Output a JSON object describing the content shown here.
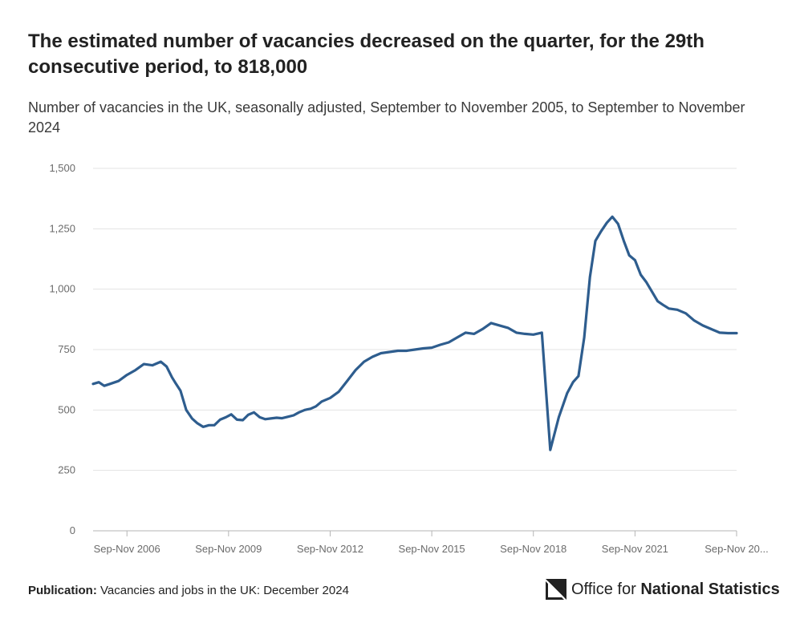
{
  "header": {
    "title": "The estimated number of vacancies decreased on the quarter, for the 29th consecutive period, to 818,000",
    "subtitle": "Number of vacancies in the UK, seasonally adjusted, September to November 2005, to September to November 2024"
  },
  "footer": {
    "publication_label": "Publication:",
    "publication_text": "Vacancies and jobs in the UK: December 2024",
    "logo_prefix": "Office for",
    "logo_bold": "National Statistics"
  },
  "colors": {
    "line": "#2e5d8e",
    "grid": "#e3e3e3",
    "axis": "#b5b5b5"
  },
  "chart_data": {
    "type": "line",
    "title": "The estimated number of vacancies decreased on the quarter, for the 29th consecutive period, to 818,000",
    "subtitle": "Number of vacancies in the UK, seasonally adjusted, September to November 2005, to September to November 2024",
    "xlabel": "",
    "ylabel": "",
    "ylim": [
      0,
      1500
    ],
    "y_ticks": [
      0,
      250,
      500,
      750,
      1000,
      1250,
      1500
    ],
    "y_tick_labels": [
      "0",
      "250",
      "500",
      "750",
      "1,000",
      "1,250",
      "1,500"
    ],
    "x_range": [
      2005.75,
      2024.75
    ],
    "x_ticks": [
      2006.75,
      2009.75,
      2012.75,
      2015.75,
      2018.75,
      2021.75,
      2024.75
    ],
    "x_tick_labels": [
      "Sep-Nov 2006",
      "Sep-Nov 2009",
      "Sep-Nov 2012",
      "Sep-Nov 2015",
      "Sep-Nov 2018",
      "Sep-Nov 2021",
      "Sep-Nov 20..."
    ],
    "grid": true,
    "series": [
      {
        "x": [
          2005.75,
          2005.92,
          2006.08,
          2006.25,
          2006.5,
          2006.75,
          2007.0,
          2007.25,
          2007.5,
          2007.75,
          2007.92,
          2008.08,
          2008.17,
          2008.33,
          2008.5,
          2008.67,
          2008.83,
          2009.0,
          2009.17,
          2009.33,
          2009.5,
          2009.67,
          2009.83,
          2010.0,
          2010.17,
          2010.33,
          2010.5,
          2010.67,
          2010.83,
          2011.0,
          2011.17,
          2011.33,
          2011.5,
          2011.67,
          2011.83,
          2012.0,
          2012.17,
          2012.33,
          2012.5,
          2012.75,
          2013.0,
          2013.25,
          2013.5,
          2013.75,
          2014.0,
          2014.25,
          2014.5,
          2014.75,
          2015.0,
          2015.25,
          2015.5,
          2015.75,
          2016.0,
          2016.25,
          2016.5,
          2016.75,
          2017.0,
          2017.25,
          2017.5,
          2017.75,
          2018.0,
          2018.25,
          2018.5,
          2018.75,
          2019.0,
          2019.25,
          2019.5,
          2019.75,
          2019.92,
          2020.08,
          2020.25,
          2020.42,
          2020.58,
          2020.75,
          2020.92,
          2021.08,
          2021.25,
          2021.42,
          2021.58,
          2021.75,
          2021.92,
          2022.08,
          2022.25,
          2022.42,
          2022.58,
          2022.75,
          2023.0,
          2023.25,
          2023.5,
          2023.75,
          2024.0,
          2024.25,
          2024.5,
          2024.75
        ],
        "values": [
          608,
          615,
          600,
          608,
          620,
          645,
          665,
          690,
          685,
          700,
          680,
          635,
          615,
          580,
          500,
          465,
          445,
          430,
          437,
          437,
          460,
          470,
          482,
          460,
          458,
          480,
          490,
          470,
          462,
          465,
          468,
          466,
          472,
          478,
          490,
          500,
          505,
          515,
          535,
          550,
          575,
          620,
          665,
          700,
          720,
          735,
          740,
          745,
          745,
          750,
          755,
          758,
          770,
          780,
          800,
          820,
          815,
          835,
          860,
          850,
          840,
          820,
          815,
          812,
          820,
          335,
          470,
          570,
          615,
          640,
          800,
          1050,
          1200,
          1240,
          1275,
          1300,
          1270,
          1200,
          1140,
          1120,
          1060,
          1030,
          990,
          950,
          935,
          920,
          915,
          900,
          870,
          850,
          835,
          820,
          818,
          818
        ]
      }
    ]
  }
}
